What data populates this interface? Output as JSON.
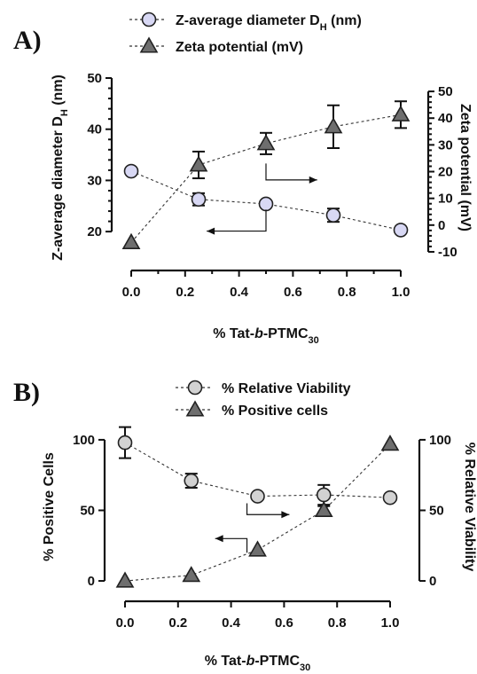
{
  "chart_data": [
    {
      "panel_label": "A)",
      "type": "scatter",
      "xlabel": "% Tat-b-PTMC30",
      "xlim": [
        0.0,
        1.0
      ],
      "x_ticks": [
        "0.0",
        "0.2",
        "0.4",
        "0.6",
        "0.8",
        "1.0"
      ],
      "ylabel_left": "Z-average diameter DH (nm)",
      "ylim_left": [
        15,
        50
      ],
      "y_ticks_left": [
        "20",
        "30",
        "40",
        "50"
      ],
      "ylabel_right": "Zeta potential (mV)",
      "ylim_right": [
        -12,
        55
      ],
      "y_ticks_right": [
        "-10",
        "0",
        "10",
        "20",
        "30",
        "40",
        "50"
      ],
      "legend": [
        "Z-average diameter DH (nm)",
        "Zeta potential (mV)"
      ],
      "series": [
        {
          "name": "Z-average diameter DH (nm)",
          "axis": "left",
          "marker": "circle",
          "color": "#d8d8f4",
          "x": [
            0.0,
            0.25,
            0.5,
            0.75,
            1.0
          ],
          "y": [
            31.8,
            26.3,
            25.4,
            23.2,
            20.3
          ],
          "err": [
            0,
            1.2,
            0,
            1.3,
            0
          ]
        },
        {
          "name": "Zeta potential (mV)",
          "axis": "right",
          "marker": "triangle",
          "color": "#6e6e6e",
          "x": [
            0.0,
            0.25,
            0.5,
            0.75,
            1.0
          ],
          "y": [
            -6.5,
            22.5,
            30.5,
            36.8,
            41.3
          ],
          "err": [
            0,
            5,
            4,
            8,
            5
          ]
        }
      ]
    },
    {
      "panel_label": "B)",
      "type": "scatter",
      "xlabel": "% Tat-b-PTMC30",
      "xlim": [
        0.0,
        1.0
      ],
      "x_ticks": [
        "0.0",
        "0.2",
        "0.4",
        "0.6",
        "0.8",
        "1.0"
      ],
      "ylabel_left": "% Positive Cells",
      "ylim_left": [
        -5,
        110
      ],
      "y_ticks_left": [
        "0",
        "50",
        "100"
      ],
      "ylabel_right": "% Relative Viability",
      "ylim_right": [
        -5,
        110
      ],
      "y_ticks_right": [
        "0",
        "50",
        "100"
      ],
      "legend": [
        "% Relative Viability",
        "% Positive cells"
      ],
      "series": [
        {
          "name": "% Relative Viability",
          "axis": "right",
          "marker": "circle",
          "color": "#d2d2d2",
          "x": [
            0.0,
            0.25,
            0.5,
            0.75,
            1.0
          ],
          "y": [
            98,
            71,
            60,
            61,
            59
          ],
          "err": [
            11,
            5,
            0,
            7,
            0
          ]
        },
        {
          "name": "% Positive cells",
          "axis": "left",
          "marker": "triangle",
          "color": "#6e6e6e",
          "x": [
            0.0,
            0.25,
            0.5,
            0.75,
            1.0
          ],
          "y": [
            0,
            4,
            22,
            50,
            97
          ],
          "err": [
            0,
            0,
            0,
            3,
            0
          ]
        }
      ]
    }
  ]
}
